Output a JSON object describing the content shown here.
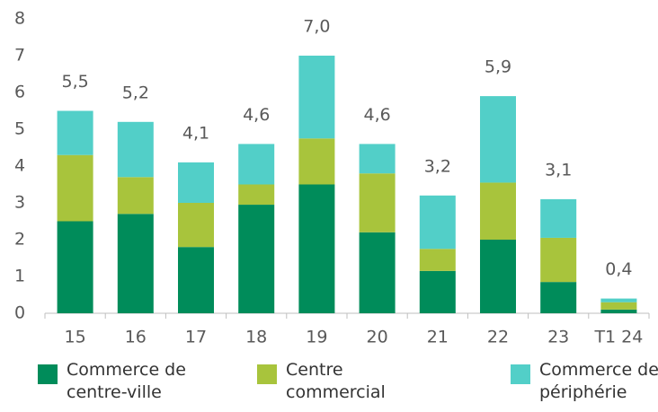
{
  "chart_data": {
    "type": "stacked_bar",
    "categories": [
      "15",
      "16",
      "17",
      "18",
      "19",
      "20",
      "21",
      "22",
      "23",
      "T1 24"
    ],
    "series": [
      {
        "name": "Commerce de centre-ville",
        "color": "#008c5a",
        "values": [
          2.5,
          2.7,
          1.8,
          2.95,
          3.5,
          2.2,
          1.15,
          2.0,
          0.85,
          0.1
        ]
      },
      {
        "name": "Centre commercial",
        "color": "#a8c43c",
        "values": [
          1.8,
          1.0,
          1.2,
          0.55,
          1.25,
          1.6,
          0.6,
          1.55,
          1.2,
          0.2
        ]
      },
      {
        "name": "Commerce de périphérie",
        "color": "#52cfc8",
        "values": [
          1.2,
          1.5,
          1.1,
          1.1,
          2.25,
          0.8,
          1.45,
          2.35,
          1.05,
          0.1
        ]
      }
    ],
    "totals": {
      "values": [
        5.5,
        5.2,
        4.1,
        4.6,
        7.0,
        4.6,
        3.2,
        5.9,
        3.1,
        0.4
      ],
      "value_labels": [
        "5,5",
        "5,2",
        "4,1",
        "4,6",
        "7,0",
        "4,6",
        "3,2",
        "5,9",
        "3,1",
        "0,4"
      ]
    },
    "ylim": [
      0,
      8
    ],
    "yticks": [
      0,
      1,
      2,
      3,
      4,
      5,
      6,
      7,
      8
    ],
    "grid": false,
    "legend": "bottom"
  }
}
